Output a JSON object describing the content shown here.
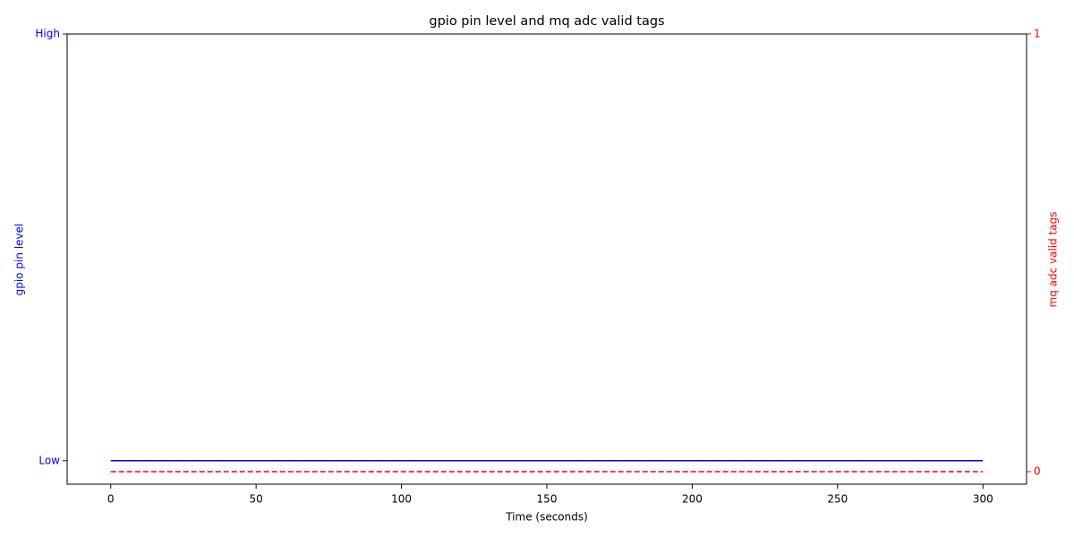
{
  "chart_data": {
    "type": "line",
    "title": "gpio pin level and mq adc valid tags",
    "xlabel": "Time (seconds)",
    "ylabel": "gpio pin level",
    "y2label": "mq adc valid tags",
    "x": [
      0,
      300
    ],
    "series": [
      {
        "color": "blue",
        "values": [
          0,
          0
        ],
        "axis": "y",
        "linestyle": "solid"
      },
      {
        "color": "red",
        "values": [
          0,
          0
        ],
        "axis": "y2",
        "linestyle": "dashed"
      }
    ],
    "xlim": [
      -15,
      315
    ],
    "xticks": [
      0,
      50,
      100,
      150,
      200,
      250,
      300
    ],
    "ylim": [
      -0.055,
      1
    ],
    "yticks": [
      {
        "value": 0,
        "label": "Low"
      },
      {
        "value": 1,
        "label": "High"
      }
    ],
    "y2lim": [
      -0.0286,
      1
    ],
    "y2ticks": [
      0,
      1
    ],
    "grid": false
  }
}
